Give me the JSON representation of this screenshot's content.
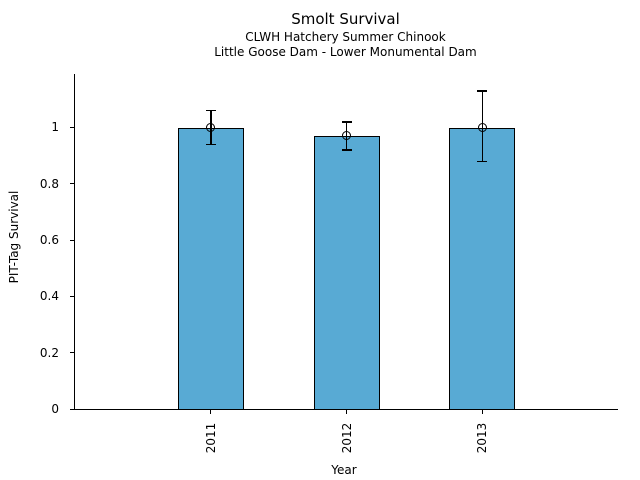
{
  "chart_data": {
    "type": "bar",
    "title": "Smolt Survival",
    "subtitle": [
      "CLWH Hatchery Summer Chinook",
      "Little Goose Dam - Lower Monumental Dam"
    ],
    "xlabel": "Year",
    "ylabel": "PIT-Tag Survival",
    "categories": [
      "2011",
      "2012",
      "2013"
    ],
    "values": [
      1.0,
      0.97,
      1.0
    ],
    "error_low": [
      0.94,
      0.92,
      0.88
    ],
    "error_high": [
      1.06,
      1.02,
      1.13
    ],
    "ytick_values": [
      0,
      0.2,
      0.4,
      0.6,
      0.8,
      1
    ],
    "ytick_labels": [
      "0",
      "0.2",
      "0.4",
      "0.6",
      "0.8",
      "1"
    ],
    "ylim": [
      0,
      1.19
    ],
    "grid": false,
    "legend": "none",
    "bar_color": "#58AAD4",
    "bar_edge_color": "#000000",
    "error_bar_color": "#000000",
    "marker": "open-circle"
  }
}
